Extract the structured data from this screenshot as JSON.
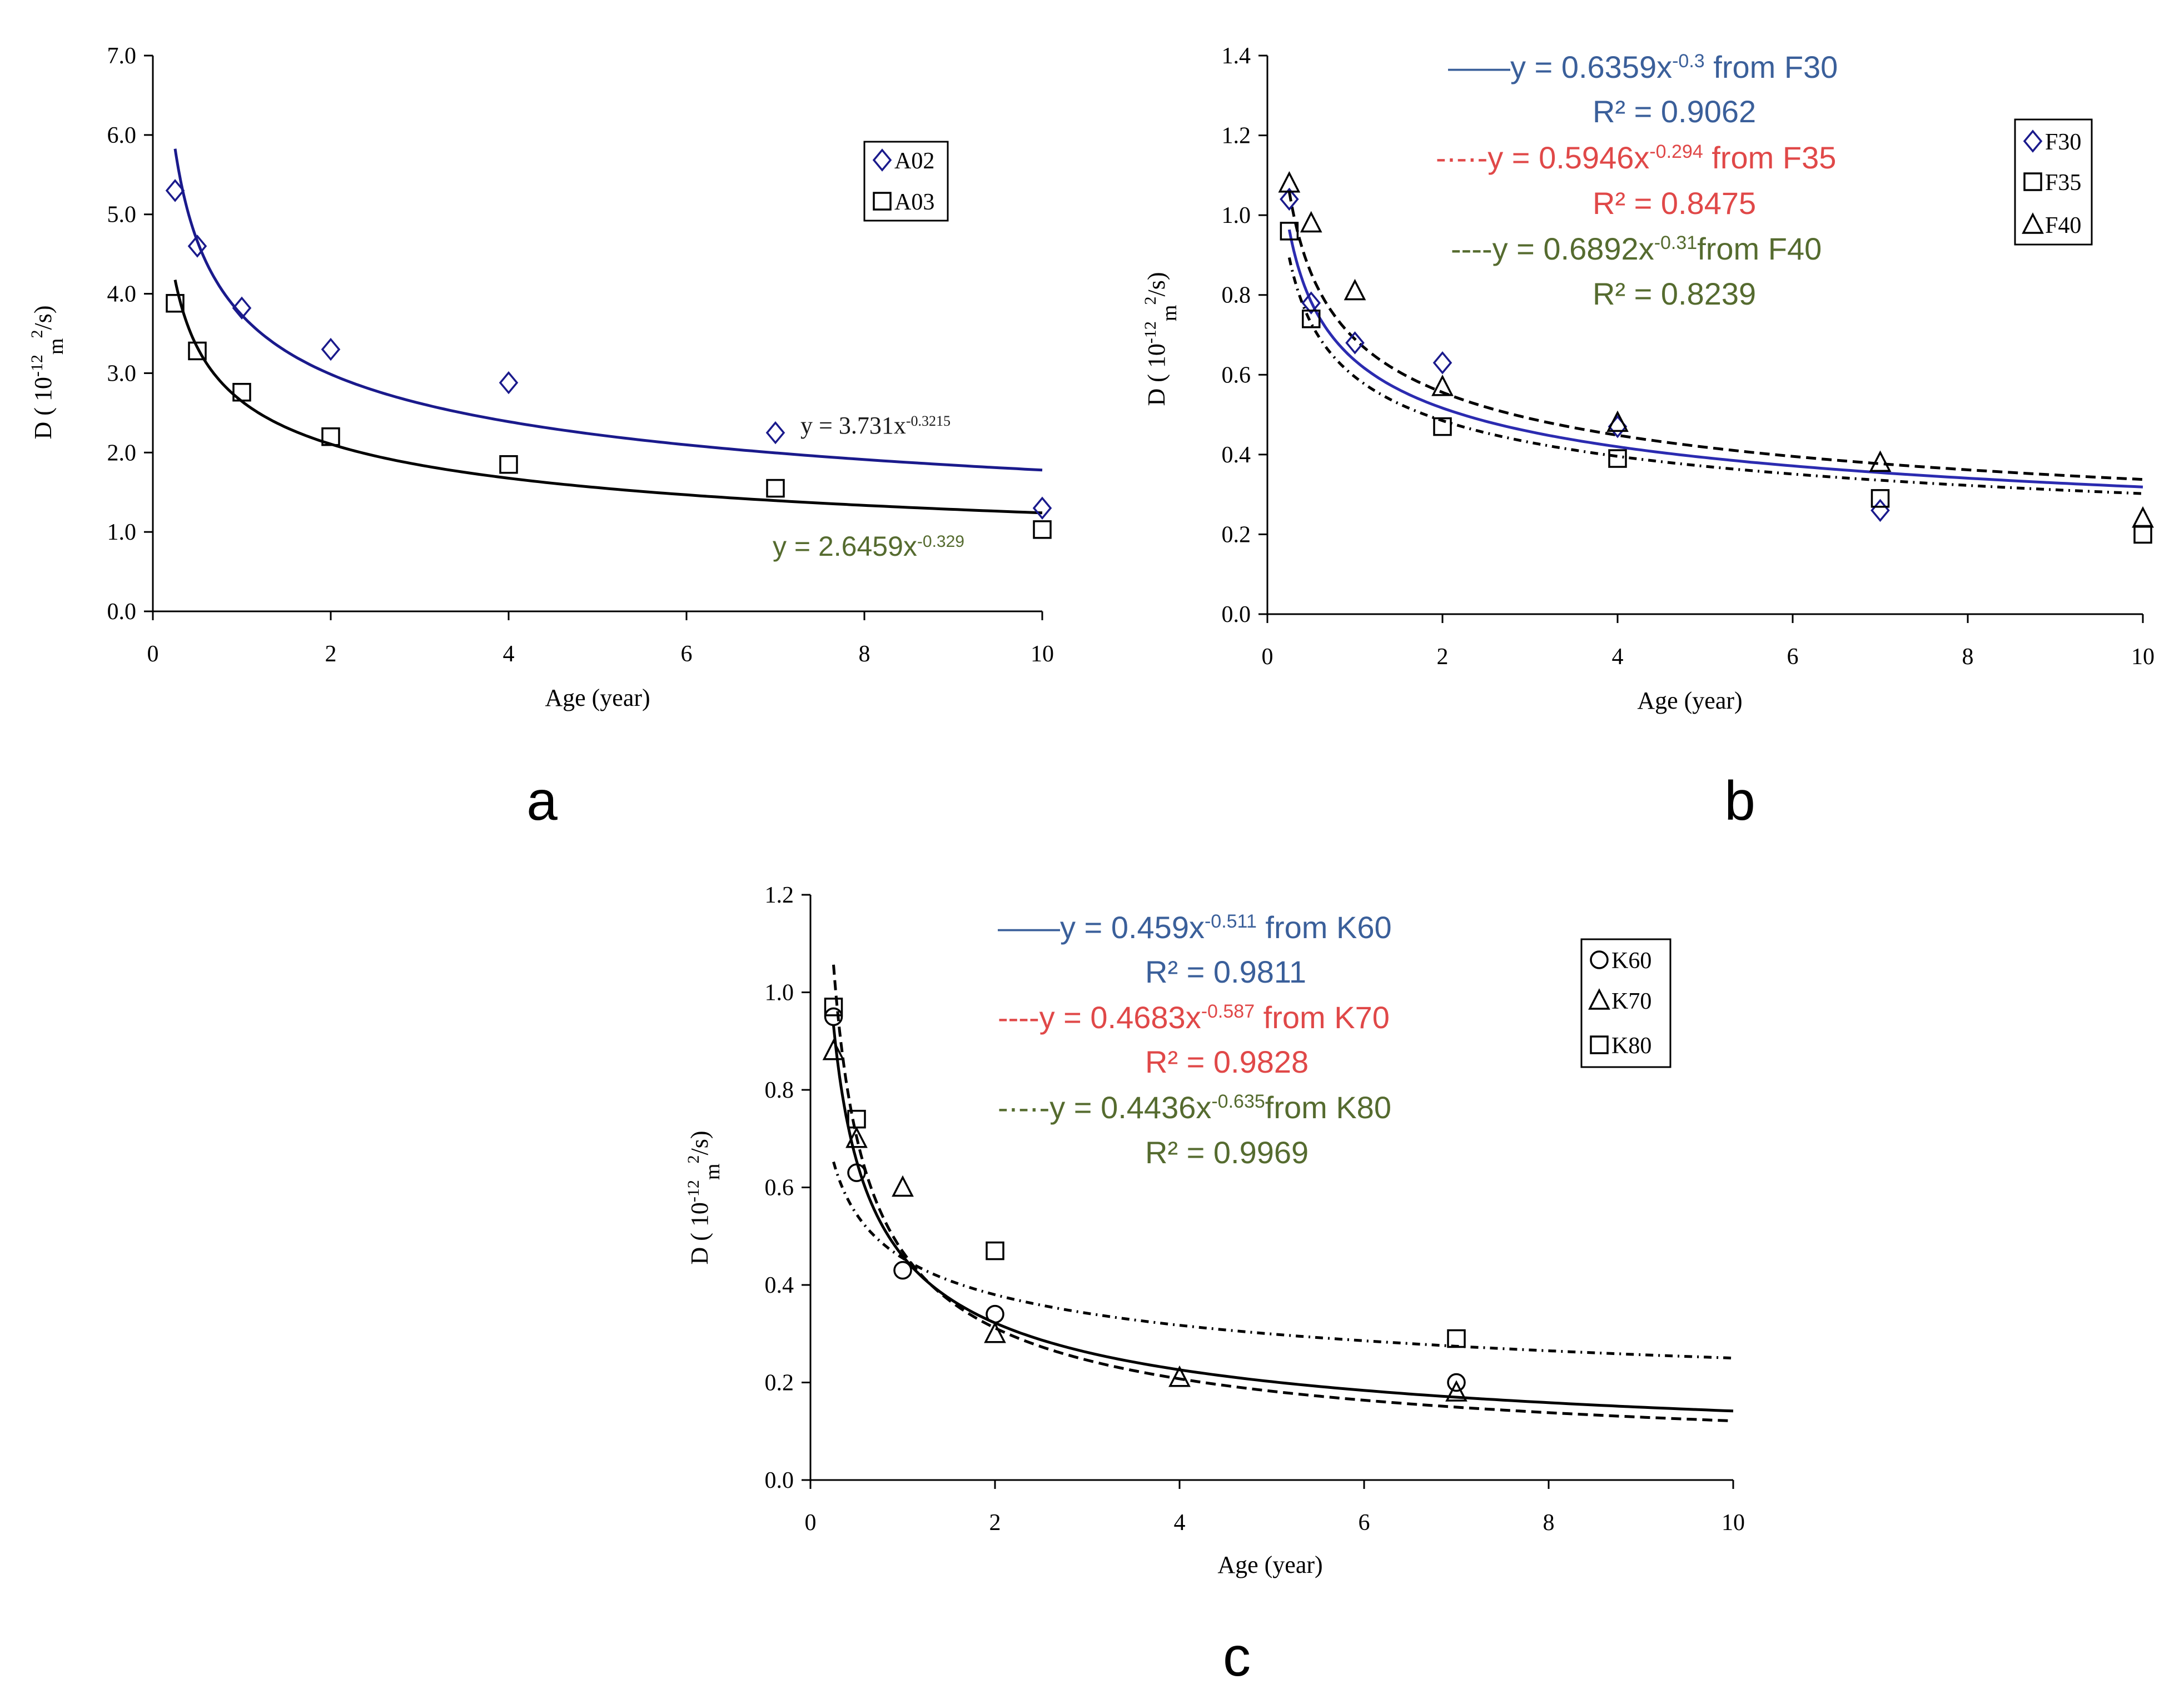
{
  "chart_data": [
    {
      "type": "scatter",
      "panel_label": "a",
      "xlabel": "Age (year)",
      "ylabel": "D (10-12m2/s)",
      "ylabel_parts": {
        "base": "D ( 10",
        "exp1": "-12",
        "unit": "m",
        "exp2": "2",
        "tail": "/s)"
      },
      "xlim": [
        0,
        10
      ],
      "ylim": [
        0,
        7
      ],
      "xticks": [
        0,
        2,
        4,
        6,
        8,
        10
      ],
      "yticks": [
        0,
        1,
        2,
        3,
        4,
        5,
        6,
        7
      ],
      "ytick_format": 1,
      "series": [
        {
          "name": "A02",
          "marker": "diamond",
          "color": "#1a1a8c",
          "x": [
            0.25,
            0.5,
            1,
            2,
            4,
            7,
            10
          ],
          "y": [
            5.3,
            4.6,
            3.82,
            3.3,
            2.88,
            2.25,
            1.3
          ],
          "fit": {
            "a": 3.731,
            "b": -0.3215,
            "color": "#1a1a8c",
            "dash": ""
          }
        },
        {
          "name": "A03",
          "marker": "square",
          "color": "#000000",
          "x": [
            0.25,
            0.5,
            1,
            2,
            4,
            7,
            10
          ],
          "y": [
            3.88,
            3.28,
            2.76,
            2.2,
            1.85,
            1.55,
            1.03
          ],
          "fit": {
            "a": 2.6459,
            "b": -0.329,
            "color": "#000000",
            "dash": ""
          }
        }
      ],
      "legend": {
        "position": "top-right",
        "entries": [
          "A02",
          "A03"
        ]
      },
      "annotations": [
        {
          "text": "y = 3.731x",
          "exp": "-0.3215",
          "color": "#1a1a1a",
          "font": "serif"
        },
        {
          "text": "y = 2.6459x",
          "exp": "-0.329",
          "color": "#556b2f",
          "font": "sans"
        }
      ]
    },
    {
      "type": "scatter",
      "panel_label": "b",
      "xlabel": "Age (year)",
      "ylabel": "D (10-12m2/s)",
      "ylabel_parts": {
        "base": "D ( 10",
        "exp1": "-12",
        "unit": "m",
        "exp2": "2",
        "tail": "/s)"
      },
      "xlim": [
        0,
        10
      ],
      "ylim": [
        0,
        1.4
      ],
      "xticks": [
        0,
        2,
        4,
        6,
        8,
        10
      ],
      "yticks": [
        0,
        0.2,
        0.4,
        0.6,
        0.8,
        1.0,
        1.2,
        1.4
      ],
      "ytick_format": 1,
      "series": [
        {
          "name": "F30",
          "marker": "diamond",
          "color": "#1a1a8c",
          "x": [
            0.25,
            0.5,
            1,
            2,
            4,
            7
          ],
          "y": [
            1.04,
            0.78,
            0.68,
            0.63,
            0.47,
            0.26
          ],
          "fit": {
            "a": 0.6359,
            "b": -0.3,
            "color": "#2b2bb0",
            "dash": ""
          }
        },
        {
          "name": "F35",
          "marker": "square",
          "color": "#000000",
          "x": [
            0.25,
            0.5,
            2,
            4,
            7,
            10
          ],
          "y": [
            0.96,
            0.74,
            0.47,
            0.39,
            0.29,
            0.2
          ],
          "fit": {
            "a": 0.5946,
            "b": -0.294,
            "color": "#000000",
            "dash": "14 9 3 9"
          }
        },
        {
          "name": "F40",
          "marker": "triangle",
          "color": "#000000",
          "x": [
            0.25,
            0.5,
            1,
            2,
            4,
            7,
            10
          ],
          "y": [
            1.08,
            0.98,
            0.81,
            0.57,
            0.48,
            0.38,
            0.24
          ],
          "fit": {
            "a": 0.6892,
            "b": -0.31,
            "color": "#000000",
            "dash": "18 10"
          }
        }
      ],
      "legend": {
        "position": "top-right",
        "entries": [
          "F30",
          "F35",
          "F40"
        ]
      },
      "annotations": [
        {
          "prefix": "——",
          "text": "y = 0.6359x",
          "exp": "-0.3",
          "suffix": " from F30",
          "color": "#3a5f9a"
        },
        {
          "text": "R² = 0.9062",
          "color": "#3a5f9a"
        },
        {
          "prefix": "-·-·-",
          "text": "y = 0.5946x",
          "exp": "-0.294",
          "suffix": " from F35",
          "color": "#e04848"
        },
        {
          "text": "R² = 0.8475",
          "color": "#e04848"
        },
        {
          "prefix": "----",
          "text": "y = 0.6892x",
          "exp": "-0.31",
          "suffix": "from F40",
          "color": "#556b2f"
        },
        {
          "text": "R² = 0.8239",
          "color": "#556b2f"
        }
      ]
    },
    {
      "type": "scatter",
      "panel_label": "c",
      "xlabel": "Age (year)",
      "ylabel": "D (10-12m2/s)",
      "ylabel_parts": {
        "base": "D ( 10",
        "exp1": "-12",
        "unit": "m",
        "exp2": "2",
        "tail": "/s)"
      },
      "xlim": [
        0,
        10
      ],
      "ylim": [
        0,
        1.2
      ],
      "xticks": [
        0,
        2,
        4,
        6,
        8,
        10
      ],
      "yticks": [
        0,
        0.2,
        0.4,
        0.6,
        0.8,
        1.0,
        1.2
      ],
      "ytick_format": 1,
      "series": [
        {
          "name": "K60",
          "marker": "circle",
          "color": "#000000",
          "x": [
            0.25,
            0.5,
            1,
            2,
            7
          ],
          "y": [
            0.95,
            0.63,
            0.43,
            0.34,
            0.2
          ],
          "fit": {
            "a": 0.459,
            "b": -0.511,
            "color": "#000000",
            "dash": ""
          }
        },
        {
          "name": "K70",
          "marker": "triangle",
          "color": "#000000",
          "x": [
            0.25,
            0.5,
            1,
            2,
            4,
            7
          ],
          "y": [
            0.88,
            0.7,
            0.6,
            0.3,
            0.21,
            0.18
          ],
          "fit": {
            "a": 0.4683,
            "b": -0.587,
            "color": "#000000",
            "dash": "18 10"
          }
        },
        {
          "name": "K80",
          "marker": "square",
          "color": "#000000",
          "x": [
            0.25,
            0.5,
            2,
            7
          ],
          "y": [
            0.97,
            0.74,
            0.47,
            0.29
          ],
          "fit": {
            "a": 0.4436,
            "b": -0.635,
            "color": "#000000",
            "dash": "14 9 3 9",
            "alt_model": {
              "a": 0.455,
              "b": -0.26
            }
          }
        }
      ],
      "legend": {
        "position": "top-right",
        "entries": [
          "K60",
          "K70",
          "K80"
        ]
      },
      "annotations": [
        {
          "prefix": "——",
          "text": "y = 0.459x",
          "exp": "-0.511",
          "suffix": "  from K60",
          "color": "#3a5f9a"
        },
        {
          "text": "R² = 0.9811",
          "color": "#3a5f9a"
        },
        {
          "prefix": "----",
          "text": "y = 0.4683x",
          "exp": "-0.587",
          "suffix": " from K70",
          "color": "#e04848"
        },
        {
          "text": "R² = 0.9828",
          "color": "#e04848"
        },
        {
          "prefix": "-·-·-",
          "text": "y = 0.4436x",
          "exp": "-0.635",
          "suffix": "from K80",
          "color": "#556b2f"
        },
        {
          "text": "R² = 0.9969",
          "color": "#556b2f"
        }
      ]
    }
  ]
}
